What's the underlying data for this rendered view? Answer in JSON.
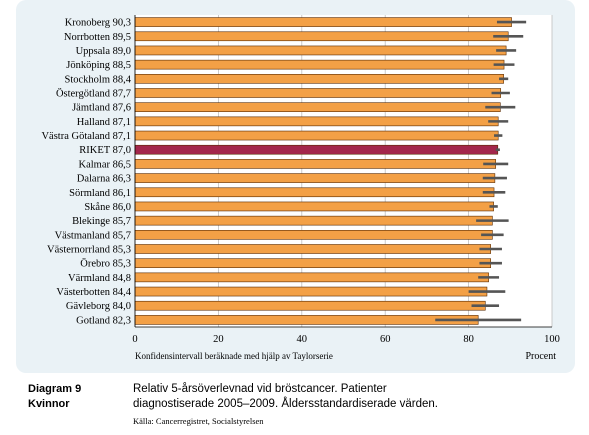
{
  "chart_data": {
    "type": "bar",
    "orientation": "horizontal",
    "categories": [
      "Kronoberg",
      "Norrbotten",
      "Uppsala",
      "Jönköping",
      "Stockholm",
      "Östergötland",
      "Jämtland",
      "Halland",
      "Västra Götaland",
      "RIKET",
      "Kalmar",
      "Dalarna",
      "Sörmland",
      "Skåne",
      "Blekinge",
      "Västmanland",
      "Västernorrland",
      "Örebro",
      "Värmland",
      "Västerbotten",
      "Gävleborg",
      "Gotland"
    ],
    "category_labels": [
      "Kronoberg 90,3",
      "Norrbotten 89,5",
      "Uppsala 89,0",
      "Jönköping 88,5",
      "Stockholm 88,4",
      "Östergötland 87,7",
      "Jämtland 87,6",
      "Halland 87,1",
      "Västra Götaland 87,1",
      "RIKET 87,0",
      "Kalmar 86,5",
      "Dalarna 86,3",
      "Sörmland 86,1",
      "Skåne 86,0",
      "Blekinge 85,7",
      "Västmanland 85,7",
      "Västernorrland 85,3",
      "Örebro 85,3",
      "Värmland 84,8",
      "Västerbotten 84,4",
      "Gävleborg 84,0",
      "Gotland 82,3"
    ],
    "values": [
      90.3,
      89.5,
      89.0,
      88.5,
      88.4,
      87.7,
      87.6,
      87.1,
      87.1,
      87.0,
      86.5,
      86.3,
      86.1,
      86.0,
      85.7,
      85.7,
      85.3,
      85.3,
      84.8,
      84.4,
      84.0,
      82.3
    ],
    "ci_lower": [
      86.8,
      85.9,
      86.6,
      86.0,
      87.3,
      85.5,
      84.0,
      84.7,
      86.1,
      86.5,
      83.5,
      83.4,
      83.4,
      85.0,
      81.8,
      83.0,
      82.6,
      82.6,
      82.3,
      80.0,
      80.7,
      72.0
    ],
    "ci_upper": [
      93.8,
      93.1,
      91.4,
      91.0,
      89.5,
      89.9,
      91.2,
      89.5,
      88.1,
      87.5,
      89.5,
      89.2,
      88.8,
      87.0,
      89.6,
      88.4,
      88.0,
      88.0,
      87.3,
      88.8,
      87.3,
      92.6
    ],
    "highlight": "RIKET",
    "colors": {
      "bar": "#f3a046",
      "highlight": "#a3274c",
      "ci": "#555555",
      "bar_edge": "#5a2a00"
    },
    "xlim": [
      0,
      100
    ],
    "xticks": [
      "0",
      "20",
      "40",
      "60",
      "80",
      "100"
    ],
    "xlabel": "Procent",
    "note": "Konfidensintervall beräknade med hjälp av Taylorserie",
    "grid": true
  },
  "caption": {
    "number_line1": "Diagram 9",
    "number_line2": "Kvinnor",
    "text_line1": "Relativ 5-årsöverlevnad vid bröstcancer. Patienter",
    "text_line2": "diagnostiserade 2005–2009. Åldersstandardiserade värden.",
    "source": "Källa: Cancerregistret, Socialstyrelsen"
  }
}
